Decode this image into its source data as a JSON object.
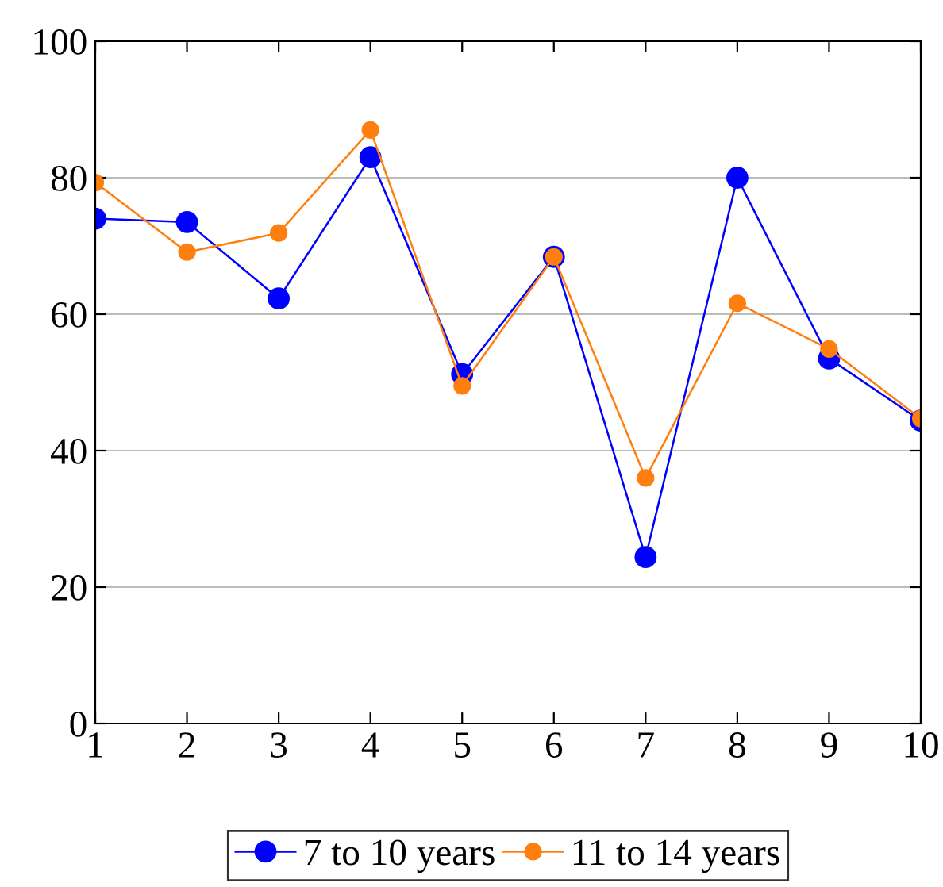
{
  "chart_data": {
    "type": "line",
    "x": [
      1,
      2,
      3,
      4,
      5,
      6,
      7,
      8,
      9,
      10
    ],
    "series": [
      {
        "name": "7 to 10 years",
        "color": "#0000ff",
        "values": [
          74.0,
          73.5,
          62.3,
          83.0,
          51.2,
          68.4,
          24.4,
          80.0,
          53.5,
          44.4
        ]
      },
      {
        "name": "11 to 14 years",
        "color": "#ff7f0e",
        "values": [
          79.3,
          69.1,
          71.9,
          87.0,
          49.5,
          68.4,
          36.0,
          61.6,
          54.9,
          44.7
        ]
      }
    ],
    "xlim": [
      1,
      10
    ],
    "xticks": [
      1,
      2,
      3,
      4,
      5,
      6,
      7,
      8,
      9,
      10
    ],
    "ylim": [
      0,
      100
    ],
    "yticks": [
      0,
      20,
      40,
      60,
      80,
      100
    ],
    "grid": "y",
    "legend": "bottom",
    "marker": "circle",
    "line_style": "solid"
  }
}
